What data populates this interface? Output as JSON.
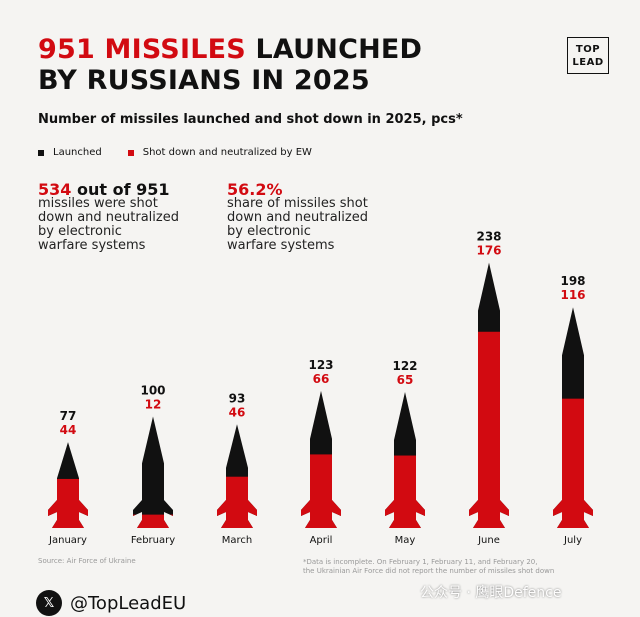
{
  "header": {
    "title_red": "951 MISSILES",
    "title_rest_1": "LAUNCHED",
    "title_rest_2": "BY RUSSIANS IN 2025",
    "logo_line1": "TOP",
    "logo_line2": "LEAD"
  },
  "stats": {
    "left_red": "534",
    "left_black": "out of 951",
    "left_text_1": "missiles were shot",
    "left_text_2": "down and neutralized",
    "left_text_3": "by electronic",
    "left_text_4": "warfare systems",
    "right_red": "56.2%",
    "right_text_1": "share of missiles shot",
    "right_text_2": "down and neutralized",
    "right_text_3": "by electronic",
    "right_text_4": "warfare systems"
  },
  "colors": {
    "launched": "#111111",
    "shot_down": "#d20a11"
  },
  "chart_data": {
    "type": "bar",
    "title": "Number of missiles launched and shot down in 2025, pcs*",
    "categories": [
      "January",
      "February",
      "March",
      "April",
      "May",
      "June",
      "July"
    ],
    "series": [
      {
        "name": "Launched",
        "values": [
          77,
          100,
          93,
          123,
          122,
          238,
          198
        ]
      },
      {
        "name": "Shot down and neutralized by EW",
        "values": [
          44,
          12,
          46,
          66,
          65,
          176,
          116
        ]
      }
    ],
    "ylim": [
      0,
      238
    ],
    "legend": "top-left",
    "grid": false
  },
  "footer": {
    "source": "Source: Air Force of Ukraine",
    "note_1": "*Data is incomplete. On February 1, February 11, and February 20,",
    "note_2": "the Ukrainian Air Force did not report the number of missiles shot down",
    "handle": "@TopLeadEU",
    "x_icon": "x-logo-icon",
    "watermark": "公众号 · 鹰眼Defence"
  }
}
